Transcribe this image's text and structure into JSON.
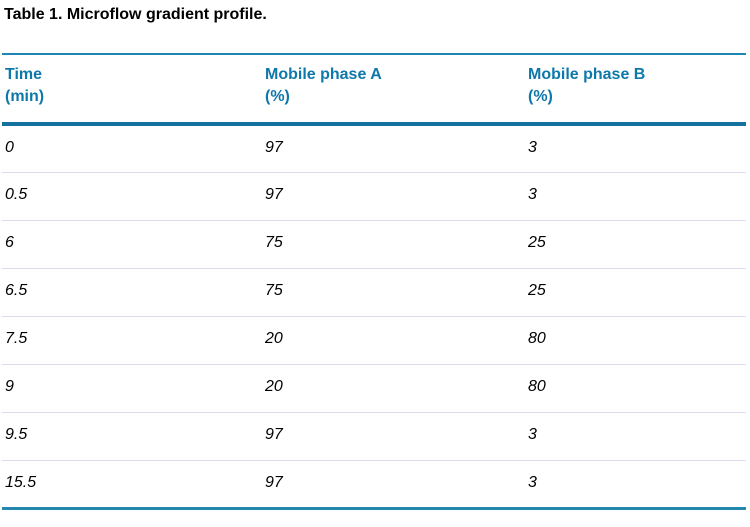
{
  "title": "Table 1. Microflow gradient profile.",
  "table": {
    "columns": [
      {
        "label": "Time",
        "sublabel": "(min)"
      },
      {
        "label": "Mobile phase A",
        "sublabel": "(%)"
      },
      {
        "label": "Mobile phase B",
        "sublabel": "(%)"
      }
    ],
    "rows": [
      [
        "0",
        "97",
        "3"
      ],
      [
        "0.5",
        "97",
        "3"
      ],
      [
        "6",
        "75",
        "25"
      ],
      [
        "6.5",
        "75",
        "25"
      ],
      [
        "7.5",
        "20",
        "80"
      ],
      [
        "9",
        "20",
        "80"
      ],
      [
        "9.5",
        "97",
        "3"
      ],
      [
        "15.5",
        "97",
        "3"
      ]
    ]
  },
  "colors": {
    "header_text_blue": "#0F78AA",
    "rule_blue_top": "#1E86B2",
    "rule_blue_header_bottom": "#15719F",
    "rule_blue_bottom": "#2488AE",
    "row_separator": "#DBDBEF",
    "body_text": "#000000",
    "background": "#FFFFFF"
  }
}
